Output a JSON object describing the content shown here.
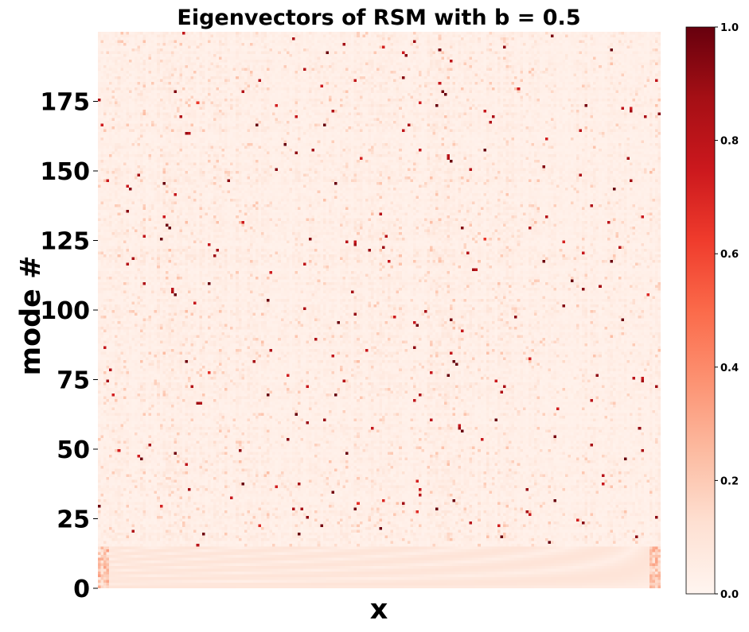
{
  "chart_data": {
    "type": "heatmap",
    "title": "Eigenvectors of RSM with b = 0.5",
    "xlabel": "x",
    "ylabel": "mode #",
    "ylim": [
      0,
      200
    ],
    "y_ticks": [
      "0",
      "25",
      "50",
      "75",
      "100",
      "125",
      "150",
      "175"
    ],
    "y_tick_values": [
      0,
      25,
      50,
      75,
      100,
      125,
      150,
      175
    ],
    "colormap": "Reds",
    "colorbar": {
      "range": [
        0.0,
        1.0
      ],
      "ticks": [
        "0.0",
        "0.2",
        "0.4",
        "0.6",
        "0.8",
        "1.0"
      ],
      "tick_values": [
        0.0,
        0.2,
        0.4,
        0.6,
        0.8,
        1.0
      ]
    },
    "colors": {
      "low": "#fff5f0",
      "mid": "#fb6a4a",
      "high": "#67000d"
    },
    "grid": false
  }
}
